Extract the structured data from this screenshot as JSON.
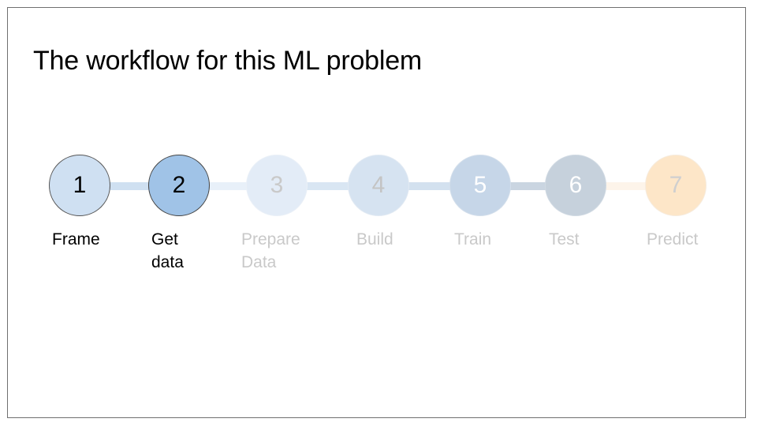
{
  "title": "The workflow for this ML problem",
  "steps": [
    {
      "number": "1",
      "label": "Frame"
    },
    {
      "number": "2",
      "label": "Get\ndata"
    },
    {
      "number": "3",
      "label": "Prepare\nData"
    },
    {
      "number": "4",
      "label": "Build"
    },
    {
      "number": "5",
      "label": "Train"
    },
    {
      "number": "6",
      "label": "Test"
    },
    {
      "number": "7",
      "label": "Predict"
    }
  ],
  "colors": {
    "active_step_fill": "#a0c3e7",
    "completed_step_fill": "#cfe0f2",
    "predict_step_fill": "#fde6c8",
    "inactive_label": "#c9c9c9"
  }
}
